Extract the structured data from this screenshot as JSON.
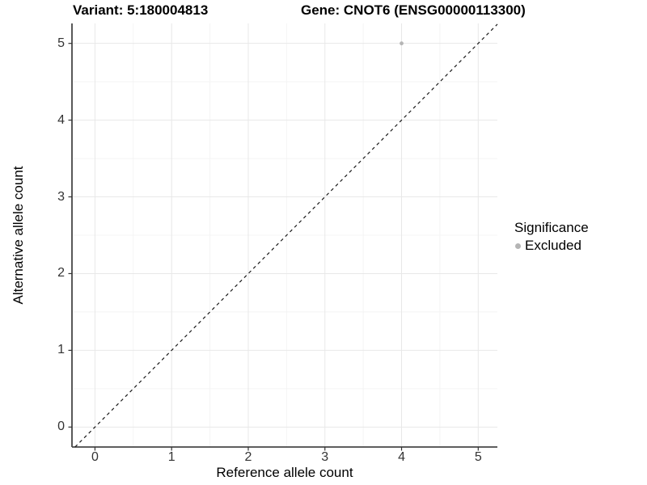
{
  "chart_data": {
    "type": "scatter",
    "titles": {
      "left": "Variant: 5:180004813",
      "right": "Gene: CNOT6 (ENSG00000113300)"
    },
    "xlabel": "Reference allele count",
    "ylabel": "Alternative allele count",
    "xlim": [
      -0.3,
      5.25
    ],
    "ylim": [
      -0.26,
      5.26
    ],
    "xticks": [
      0,
      1,
      2,
      3,
      4,
      5
    ],
    "yticks": [
      0,
      1,
      2,
      3,
      4,
      5
    ],
    "minor_gridline_step": 0.5,
    "grid": "major and minor gridlines on white background, axis lines left and bottom only",
    "series": [
      {
        "name": "Excluded",
        "color": "#b5b5b5",
        "points": [
          {
            "x": 4,
            "y": 5
          }
        ]
      }
    ],
    "reference_line": {
      "kind": "identity abline y = x",
      "slope": 1,
      "intercept": 0,
      "style": "dashed",
      "color": "#1a1a1a"
    },
    "legend": {
      "title": "Significance",
      "position": "right",
      "items": [
        {
          "label": "Excluded",
          "marker": "circle",
          "color": "#b5b5b5"
        }
      ]
    },
    "colors": {
      "background": "#ffffff",
      "grid_major": "#e8e8e8",
      "grid_minor": "#f4f4f4",
      "axis_line": "#474747",
      "tick_mark": "#333333",
      "tick_text": "#333333",
      "title_text": "#000000"
    }
  }
}
